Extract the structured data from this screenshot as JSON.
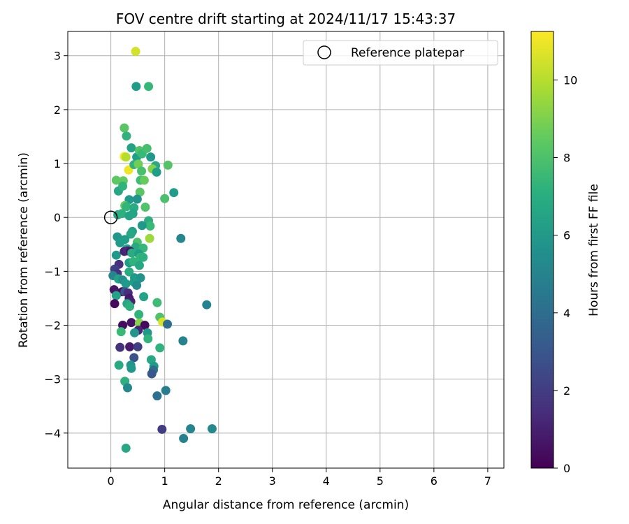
{
  "chart_data": {
    "type": "scatter",
    "title": "FOV centre drift starting at 2024/11/17 15:43:37",
    "xlabel": "Angular distance from reference (arcmin)",
    "ylabel": "Rotation from reference (arcmin)",
    "xlim": [
      -0.8,
      7.3
    ],
    "ylim": [
      -4.65,
      3.45
    ],
    "xticks": [
      0,
      1,
      2,
      3,
      4,
      5,
      6,
      7
    ],
    "yticks": [
      -4,
      -3,
      -2,
      -1,
      0,
      1,
      2,
      3
    ],
    "grid": true,
    "legend": {
      "entries": [
        "Reference platepar"
      ],
      "position": "top-right"
    },
    "colorbar": {
      "label": "Hours from first FF file",
      "range": [
        0,
        11.25
      ],
      "ticks": [
        0,
        2,
        4,
        6,
        8,
        10
      ],
      "colormap": "viridis"
    },
    "reference_point": {
      "x": 0,
      "y": 0
    },
    "points": [
      {
        "x": 0.46,
        "y": 3.08,
        "c": 10.5
      },
      {
        "x": 0.47,
        "y": 2.43,
        "c": 6.2
      },
      {
        "x": 0.7,
        "y": 2.43,
        "c": 7.5
      },
      {
        "x": 0.25,
        "y": 1.66,
        "c": 8.3
      },
      {
        "x": 0.29,
        "y": 1.51,
        "c": 7.2
      },
      {
        "x": 0.38,
        "y": 1.29,
        "c": 6.5
      },
      {
        "x": 0.25,
        "y": 1.13,
        "c": 11.2
      },
      {
        "x": 0.28,
        "y": 1.12,
        "c": 10.0
      },
      {
        "x": 0.33,
        "y": 0.88,
        "c": 11.0
      },
      {
        "x": 0.48,
        "y": 1.12,
        "c": 6.3
      },
      {
        "x": 0.53,
        "y": 1.24,
        "c": 8.1
      },
      {
        "x": 0.58,
        "y": 1.18,
        "c": 7.6
      },
      {
        "x": 0.67,
        "y": 1.28,
        "c": 7.9
      },
      {
        "x": 0.74,
        "y": 1.12,
        "c": 6.0
      },
      {
        "x": 0.83,
        "y": 0.96,
        "c": 6.8
      },
      {
        "x": 1.06,
        "y": 0.97,
        "c": 8.2
      },
      {
        "x": 0.1,
        "y": 0.69,
        "c": 8.4
      },
      {
        "x": 0.23,
        "y": 0.68,
        "c": 8.5
      },
      {
        "x": 0.43,
        "y": 0.98,
        "c": 7.2
      },
      {
        "x": 0.51,
        "y": 0.99,
        "c": 8.8
      },
      {
        "x": 0.57,
        "y": 0.86,
        "c": 8.0
      },
      {
        "x": 0.77,
        "y": 0.9,
        "c": 9.1
      },
      {
        "x": 0.85,
        "y": 0.84,
        "c": 6.3
      },
      {
        "x": 0.55,
        "y": 0.69,
        "c": 7.7
      },
      {
        "x": 0.62,
        "y": 0.69,
        "c": 8.6
      },
      {
        "x": 0.54,
        "y": 0.47,
        "c": 8.3
      },
      {
        "x": 1.17,
        "y": 0.46,
        "c": 6.2
      },
      {
        "x": 1.0,
        "y": 0.35,
        "c": 8.0
      },
      {
        "x": 0.14,
        "y": 0.49,
        "c": 6.7
      },
      {
        "x": 0.22,
        "y": 0.58,
        "c": 7.3
      },
      {
        "x": 0.34,
        "y": 0.33,
        "c": 6.1
      },
      {
        "x": 0.49,
        "y": 0.34,
        "c": 5.8
      },
      {
        "x": 0.26,
        "y": 0.22,
        "c": 8.5
      },
      {
        "x": 0.29,
        "y": 0.2,
        "c": 7.4
      },
      {
        "x": 0.43,
        "y": 0.18,
        "c": 6.9
      },
      {
        "x": 0.64,
        "y": 0.19,
        "c": 8.1
      },
      {
        "x": 0.13,
        "y": 0.05,
        "c": 6.4
      },
      {
        "x": 0.2,
        "y": 0.07,
        "c": 7.1
      },
      {
        "x": 0.34,
        "y": 0.03,
        "c": 6.5
      },
      {
        "x": 0.41,
        "y": 0.07,
        "c": 6.6
      },
      {
        "x": 0.7,
        "y": -0.06,
        "c": 7.0
      },
      {
        "x": 0.73,
        "y": -0.16,
        "c": 7.6
      },
      {
        "x": 0.58,
        "y": -0.15,
        "c": 6.0
      },
      {
        "x": 0.4,
        "y": -0.26,
        "c": 6.4
      },
      {
        "x": 0.37,
        "y": -0.31,
        "c": 6.7
      },
      {
        "x": 0.12,
        "y": -0.36,
        "c": 5.9
      },
      {
        "x": 0.17,
        "y": -0.47,
        "c": 6.1
      },
      {
        "x": 0.26,
        "y": -0.41,
        "c": 6.3
      },
      {
        "x": 0.49,
        "y": -0.46,
        "c": 8.0
      },
      {
        "x": 0.72,
        "y": -0.39,
        "c": 9.6
      },
      {
        "x": 1.3,
        "y": -0.39,
        "c": 5.2
      },
      {
        "x": 0.3,
        "y": -0.58,
        "c": 6.4
      },
      {
        "x": 0.46,
        "y": -0.55,
        "c": 6.8
      },
      {
        "x": 0.6,
        "y": -0.57,
        "c": 7.5
      },
      {
        "x": 0.1,
        "y": -0.7,
        "c": 6.0
      },
      {
        "x": 0.25,
        "y": -0.63,
        "c": 1.1
      },
      {
        "x": 0.31,
        "y": -0.62,
        "c": 1.3
      },
      {
        "x": 0.36,
        "y": -0.63,
        "c": 0.6
      },
      {
        "x": 0.39,
        "y": -0.66,
        "c": 6.9
      },
      {
        "x": 0.52,
        "y": -0.68,
        "c": 6.2
      },
      {
        "x": 0.55,
        "y": -0.74,
        "c": 7.4
      },
      {
        "x": 0.6,
        "y": -0.74,
        "c": 7.1
      },
      {
        "x": 0.34,
        "y": -0.84,
        "c": 6.2
      },
      {
        "x": 0.42,
        "y": -0.82,
        "c": 7.3
      },
      {
        "x": 0.53,
        "y": -0.89,
        "c": 6.7
      },
      {
        "x": 0.15,
        "y": -0.87,
        "c": 1.5
      },
      {
        "x": 0.07,
        "y": -0.96,
        "c": 2.1
      },
      {
        "x": 0.12,
        "y": -1.04,
        "c": 1.7
      },
      {
        "x": 0.34,
        "y": -1.01,
        "c": 6.9
      },
      {
        "x": 0.44,
        "y": -1.12,
        "c": 6.1
      },
      {
        "x": 0.5,
        "y": -1.15,
        "c": 6.3
      },
      {
        "x": 0.55,
        "y": -1.12,
        "c": 5.8
      },
      {
        "x": 0.04,
        "y": -1.08,
        "c": 5.2
      },
      {
        "x": 0.14,
        "y": -1.14,
        "c": 6.5
      },
      {
        "x": 0.22,
        "y": -1.16,
        "c": 5.6
      },
      {
        "x": 0.28,
        "y": -1.23,
        "c": 6.1
      },
      {
        "x": 0.43,
        "y": -1.2,
        "c": 6.2
      },
      {
        "x": 0.48,
        "y": -1.26,
        "c": 5.4
      },
      {
        "x": 0.06,
        "y": -1.34,
        "c": 0.6
      },
      {
        "x": 0.21,
        "y": -1.38,
        "c": 0.4
      },
      {
        "x": 0.26,
        "y": -1.38,
        "c": 2.9
      },
      {
        "x": 0.32,
        "y": -1.4,
        "c": 1.5
      },
      {
        "x": 0.1,
        "y": -1.45,
        "c": 6.5
      },
      {
        "x": 0.34,
        "y": -1.5,
        "c": 0.8
      },
      {
        "x": 0.37,
        "y": -1.56,
        "c": 1.1
      },
      {
        "x": 0.61,
        "y": -1.47,
        "c": 6.5
      },
      {
        "x": 0.07,
        "y": -1.6,
        "c": 0.3
      },
      {
        "x": 0.3,
        "y": -1.6,
        "c": 6.7
      },
      {
        "x": 0.35,
        "y": -1.65,
        "c": 7.1
      },
      {
        "x": 0.86,
        "y": -1.58,
        "c": 7.7
      },
      {
        "x": 1.78,
        "y": -1.62,
        "c": 5.0
      },
      {
        "x": 0.52,
        "y": -1.8,
        "c": 7.3
      },
      {
        "x": 0.91,
        "y": -1.85,
        "c": 8.1
      },
      {
        "x": 0.96,
        "y": -1.94,
        "c": 10.6
      },
      {
        "x": 0.22,
        "y": -2.0,
        "c": 0.4
      },
      {
        "x": 0.38,
        "y": -1.95,
        "c": 0.6
      },
      {
        "x": 0.53,
        "y": -1.96,
        "c": 9.2
      },
      {
        "x": 0.63,
        "y": -2.0,
        "c": 0.3
      },
      {
        "x": 1.05,
        "y": -1.98,
        "c": 4.0
      },
      {
        "x": 0.51,
        "y": -2.09,
        "c": 1.2
      },
      {
        "x": 0.68,
        "y": -2.14,
        "c": 6.0
      },
      {
        "x": 0.44,
        "y": -2.14,
        "c": 5.9
      },
      {
        "x": 0.19,
        "y": -2.12,
        "c": 7.6
      },
      {
        "x": 0.69,
        "y": -2.25,
        "c": 7.3
      },
      {
        "x": 1.34,
        "y": -2.29,
        "c": 5.0
      },
      {
        "x": 0.17,
        "y": -2.41,
        "c": 1.6
      },
      {
        "x": 0.35,
        "y": -2.4,
        "c": 0.8
      },
      {
        "x": 0.5,
        "y": -2.4,
        "c": 2.1
      },
      {
        "x": 0.91,
        "y": -2.42,
        "c": 7.2
      },
      {
        "x": 0.43,
        "y": -2.6,
        "c": 2.8
      },
      {
        "x": 0.75,
        "y": -2.64,
        "c": 6.7
      },
      {
        "x": 0.15,
        "y": -2.74,
        "c": 6.8
      },
      {
        "x": 0.37,
        "y": -2.74,
        "c": 5.9
      },
      {
        "x": 0.38,
        "y": -2.8,
        "c": 6.0
      },
      {
        "x": 0.8,
        "y": -2.76,
        "c": 6.1
      },
      {
        "x": 0.79,
        "y": -2.83,
        "c": 4.1
      },
      {
        "x": 0.76,
        "y": -2.9,
        "c": 3.1
      },
      {
        "x": 0.26,
        "y": -3.04,
        "c": 7.1
      },
      {
        "x": 0.31,
        "y": -3.16,
        "c": 5.3
      },
      {
        "x": 1.02,
        "y": -3.21,
        "c": 4.8
      },
      {
        "x": 0.86,
        "y": -3.31,
        "c": 4.2
      },
      {
        "x": 0.95,
        "y": -3.93,
        "c": 2.0
      },
      {
        "x": 1.48,
        "y": -3.92,
        "c": 5.1
      },
      {
        "x": 1.88,
        "y": -3.92,
        "c": 5.3
      },
      {
        "x": 1.35,
        "y": -4.1,
        "c": 4.9
      },
      {
        "x": 0.28,
        "y": -4.28,
        "c": 6.7
      }
    ]
  }
}
